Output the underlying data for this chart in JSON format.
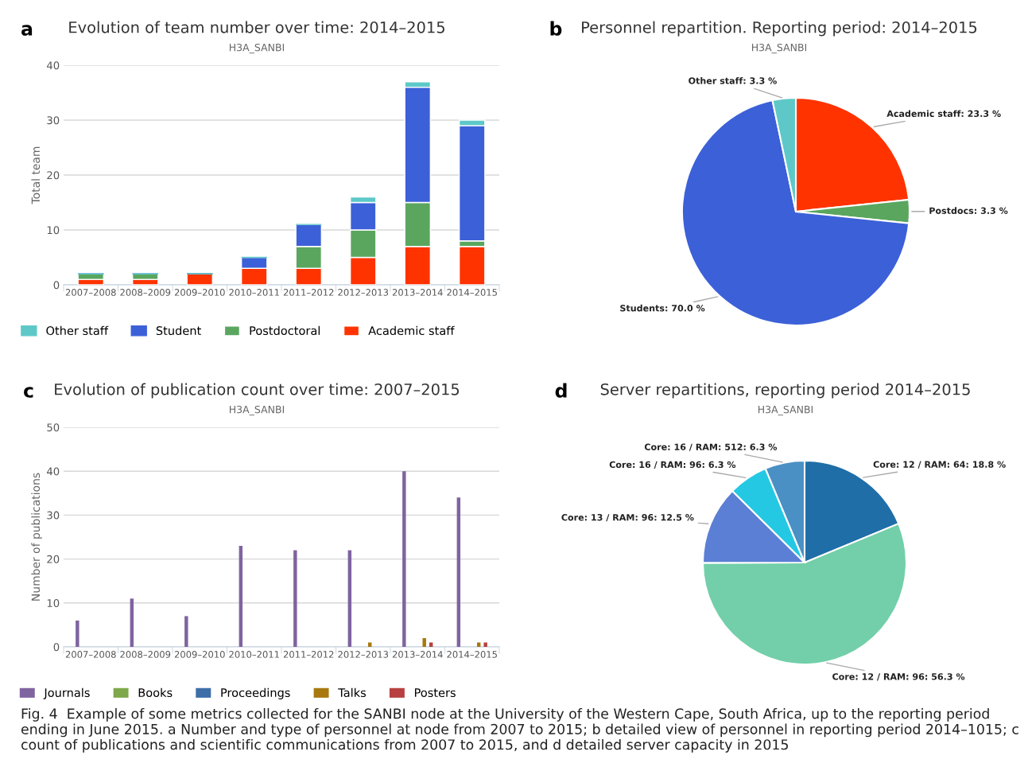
{
  "chart_data": [
    {
      "type": "bar",
      "stacked": true,
      "title": "Evolution of team number over time: 2014–2015",
      "subtitle": "H3A_SANBI",
      "ylabel": "Total team",
      "categories": [
        "2007–2008",
        "2008–2009",
        "2009–2010",
        "2010–2011",
        "2011–2012",
        "2012–2013",
        "2013–2014",
        "2014–2015"
      ],
      "series": [
        {
          "name": "Academic staff",
          "color": "#ff3300",
          "values": [
            1,
            1,
            2,
            3,
            3,
            5,
            7,
            7
          ]
        },
        {
          "name": "Postdoctoral",
          "color": "#5aa65f",
          "values": [
            1,
            1,
            0,
            0,
            4,
            5,
            8,
            1
          ]
        },
        {
          "name": "Student",
          "color": "#3c60d8",
          "values": [
            0,
            0,
            0,
            2,
            4,
            5,
            21,
            21
          ]
        },
        {
          "name": "Other staff",
          "color": "#5ec8c8",
          "values": [
            0,
            0,
            0,
            0,
            0,
            1,
            1,
            1
          ]
        }
      ],
      "ylim": [
        0,
        40
      ],
      "yticks": [
        0,
        10,
        20,
        30,
        40
      ],
      "grid": "y",
      "legend": "bottom",
      "annotations": [
        "a"
      ]
    },
    {
      "type": "pie",
      "title": "Personnel repartition. Reporting period: 2014–2015",
      "subtitle": "H3A_SANBI",
      "categories": [
        "Academic staff",
        "Postdocs",
        "Students",
        "Other staff"
      ],
      "values": [
        23.3,
        3.3,
        70.0,
        3.3
      ],
      "value_labels": [
        "23.3 %",
        "3.3 %",
        "70.0 %",
        "3.3 %"
      ],
      "colors": [
        "#ff3300",
        "#5aa65f",
        "#3c60d8",
        "#5ec8c8"
      ],
      "annotations": [
        "b"
      ]
    },
    {
      "type": "bar",
      "title": "Evolution of publication count over time: 2007–2015",
      "subtitle": "H3A_SANBI",
      "ylabel": "Number of publications",
      "categories": [
        "2007–2008",
        "2008–2009",
        "2009–2010",
        "2010–2011",
        "2011–2012",
        "2012–2013",
        "2013–2014",
        "2014–2015"
      ],
      "series": [
        {
          "name": "Journals",
          "color": "#7f64a0",
          "values": [
            6,
            11,
            7,
            23,
            22,
            22,
            40,
            34
          ]
        },
        {
          "name": "Books",
          "color": "#7fa84a",
          "values": [
            0,
            0,
            0,
            0,
            0,
            0,
            0,
            0
          ]
        },
        {
          "name": "Proceedings",
          "color": "#3d6ea8",
          "values": [
            0,
            0,
            0,
            0,
            0,
            0,
            0,
            0
          ]
        },
        {
          "name": "Talks",
          "color": "#a8780f",
          "values": [
            0,
            0,
            0,
            0,
            0,
            1,
            2,
            1
          ]
        },
        {
          "name": "Posters",
          "color": "#b84040",
          "values": [
            0,
            0,
            0,
            0,
            0,
            0,
            1,
            1
          ]
        }
      ],
      "ylim": [
        0,
        50
      ],
      "yticks": [
        0,
        10,
        20,
        30,
        40,
        50
      ],
      "grid": "y",
      "legend": "bottom",
      "annotations": [
        "c"
      ]
    },
    {
      "type": "pie",
      "title": "Server repartitions, reporting period 2014–2015",
      "subtitle": "H3A_SANBI",
      "categories": [
        "Core: 12 / RAM: 64",
        "Core: 12 / RAM: 96",
        "Core: 13 / RAM: 96",
        "Core: 16 / RAM: 96",
        "Core: 16 / RAM: 512"
      ],
      "values": [
        18.8,
        56.3,
        12.5,
        6.3,
        6.3
      ],
      "value_labels": [
        "18.8 %",
        "56.3 %",
        "12.5 %",
        "6.3 %",
        "6.3 %"
      ],
      "colors": [
        "#1f6ea8",
        "#72cfa9",
        "#5b7fd4",
        "#25c8e3",
        "#4a90c4"
      ],
      "annotations": [
        "d",
        "Fig. 4  Example of some metrics collected for the SANBI node at the University of the Western Cape, South Africa, up to the reporting period ending in June 2015. a Number and type of personnel at node from 2007 to 2015; b detailed view of personnel in reporting period 2014–1015; c count of publications and scientific communications from 2007 to 2015, and d detailed server capacity in 2015"
      ]
    }
  ]
}
